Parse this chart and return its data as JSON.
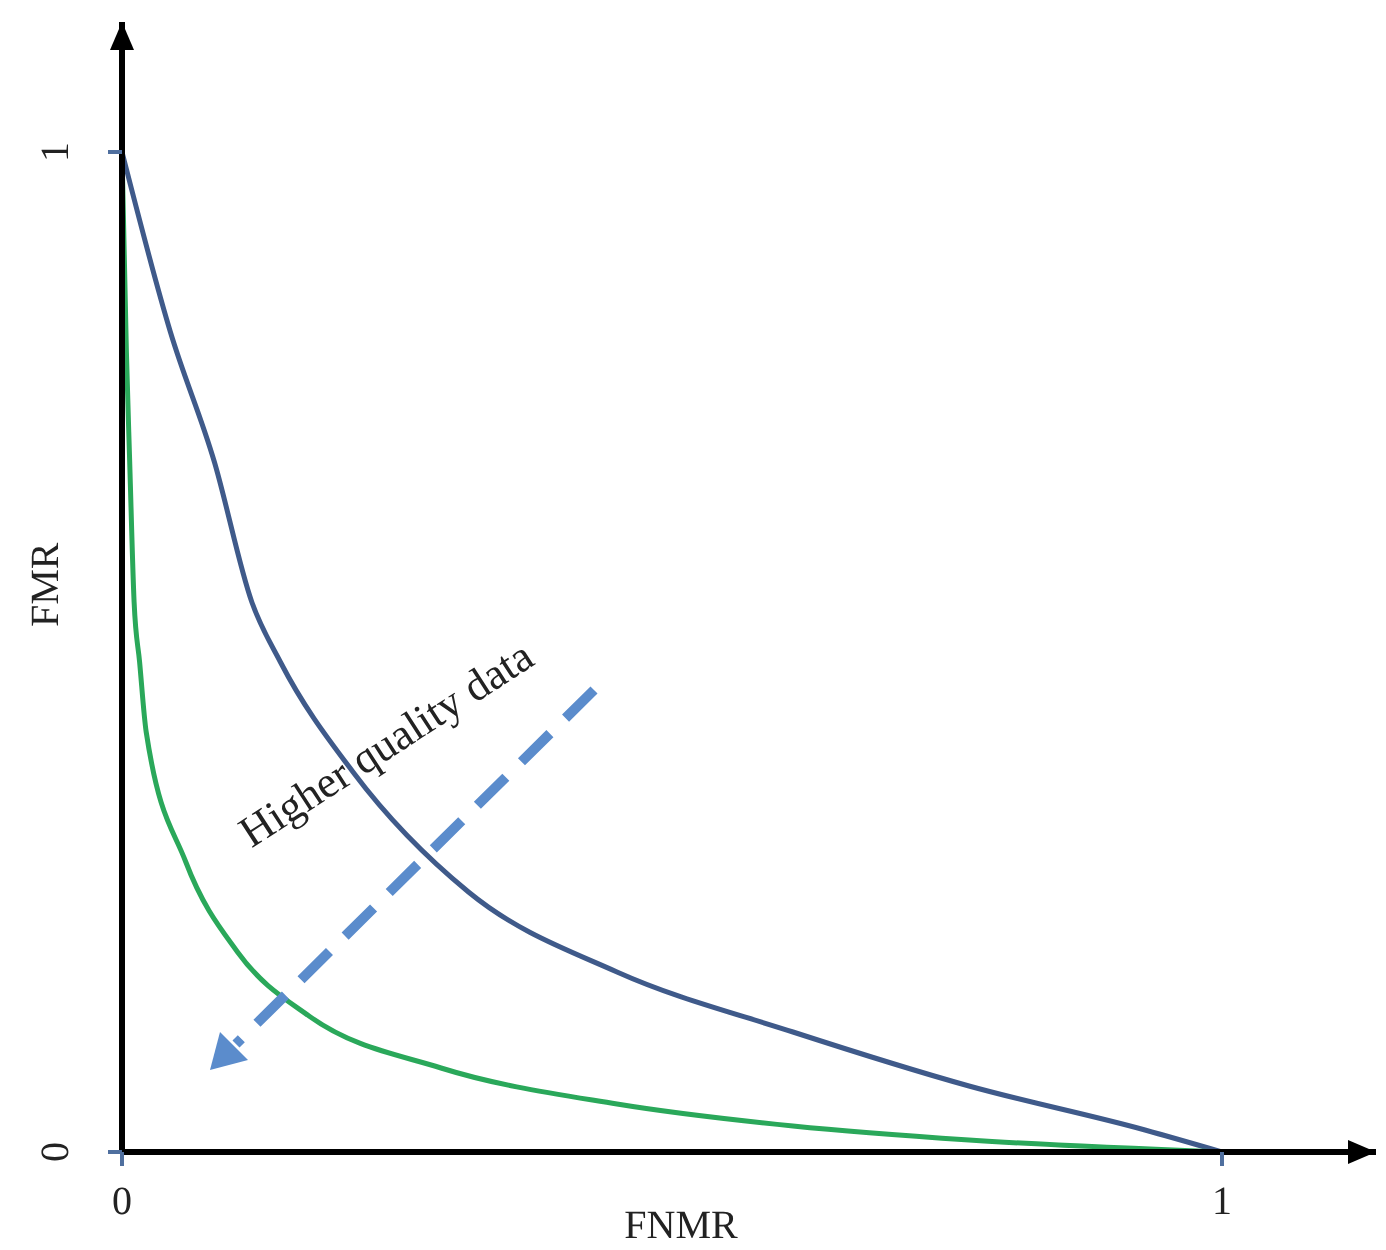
{
  "chart_data": {
    "type": "line",
    "xlabel": "FNMR",
    "ylabel": "FMR",
    "xlim": [
      0,
      1.14
    ],
    "ylim": [
      0,
      1.13
    ],
    "xticks": [
      0,
      1
    ],
    "yticks": [
      0,
      1
    ],
    "annotations": [
      "Higher quality data"
    ],
    "series": [
      {
        "color": "#3f5a8a",
        "x": [
          0,
          0.044,
          0.084,
          0.118,
          0.144,
          0.21,
          0.315,
          0.45,
          0.61,
          0.77,
          0.93,
          1
        ],
        "values": [
          1,
          0.82,
          0.69,
          0.55,
          0.49,
          0.38,
          0.26,
          0.18,
          0.12,
          0.066,
          0.022,
          0
        ]
      },
      {
        "color": "#2aa85a",
        "x": [
          0,
          0.004,
          0.007,
          0.011,
          0.016,
          0.022,
          0.058,
          0.105,
          0.17,
          0.29,
          0.45,
          0.61,
          0.77,
          1
        ],
        "values": [
          1,
          0.8,
          0.69,
          0.55,
          0.49,
          0.42,
          0.29,
          0.2,
          0.136,
          0.084,
          0.048,
          0.026,
          0.012,
          0
        ]
      }
    ]
  }
}
